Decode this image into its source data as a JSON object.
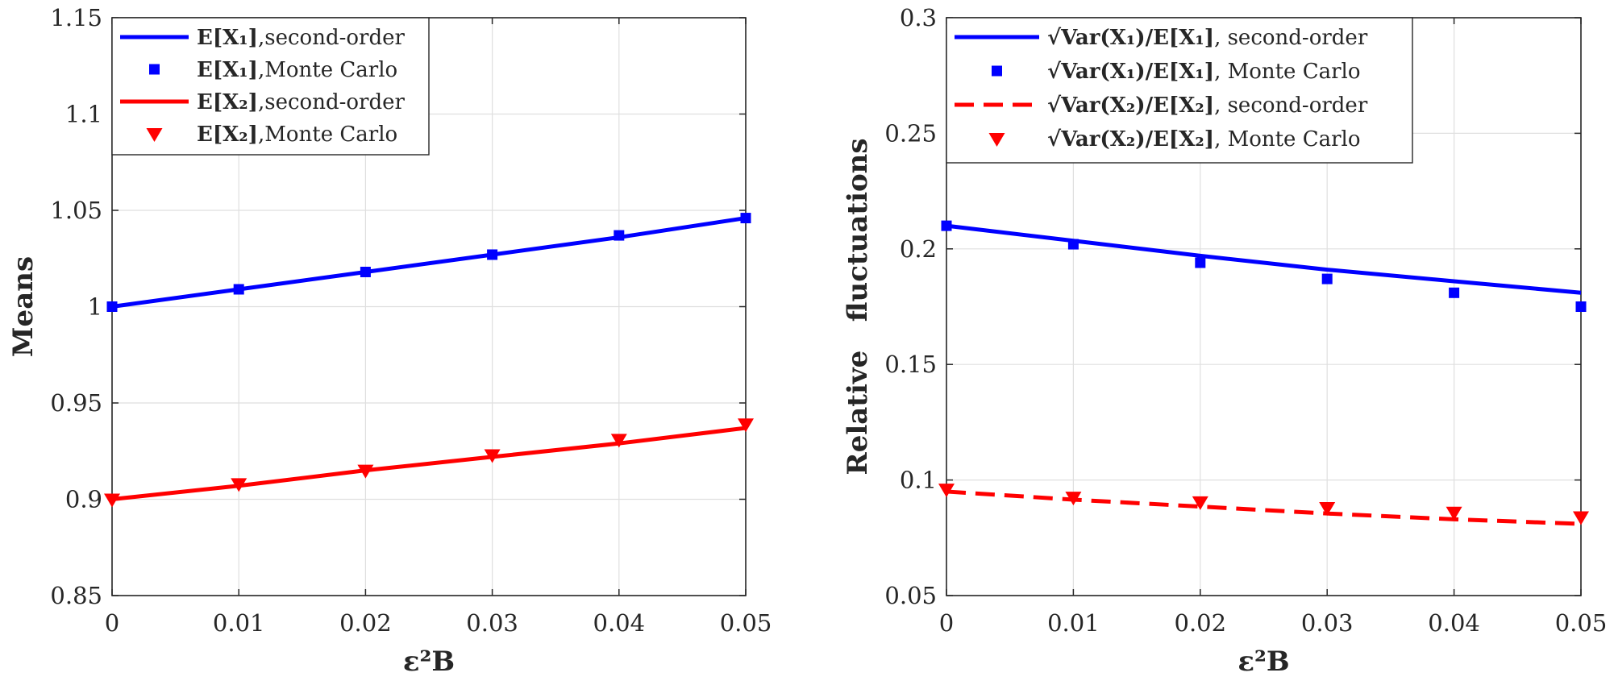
{
  "chart_data": [
    {
      "type": "line",
      "title": "",
      "xlabel": "ε²B",
      "ylabel": "Means",
      "xlim": [
        0,
        0.05
      ],
      "ylim": [
        0.85,
        1.15
      ],
      "x_ticks": [
        "0",
        "0.01",
        "0.02",
        "0.03",
        "0.04",
        "0.05"
      ],
      "y_ticks": [
        "0.85",
        "0.9",
        "0.95",
        "1",
        "1.05",
        "1.1",
        "1.15"
      ],
      "grid": true,
      "legend_position": "top-left",
      "x": [
        0,
        0.01,
        0.02,
        0.03,
        0.04,
        0.05
      ],
      "series": [
        {
          "name": "E[X₁],second-order",
          "style": "solid-line",
          "color": "#0000ff",
          "values": [
            1.0,
            1.009,
            1.018,
            1.027,
            1.036,
            1.046
          ]
        },
        {
          "name": "E[X₁],Monte Carlo",
          "style": "square-marker",
          "color": "#0000ff",
          "values": [
            1.0,
            1.009,
            1.018,
            1.027,
            1.037,
            1.046
          ]
        },
        {
          "name": "E[X₂],second-order",
          "style": "solid-line",
          "color": "#ff0000",
          "values": [
            0.9,
            0.907,
            0.915,
            0.922,
            0.929,
            0.937
          ]
        },
        {
          "name": "E[X₂],Monte Carlo",
          "style": "triangle-marker",
          "color": "#ff0000",
          "values": [
            0.9,
            0.908,
            0.915,
            0.923,
            0.931,
            0.939
          ]
        }
      ]
    },
    {
      "type": "line",
      "title": "",
      "xlabel": "ε²B",
      "ylabel": "Relative   fluctuations",
      "xlim": [
        0,
        0.05
      ],
      "ylim": [
        0.05,
        0.3
      ],
      "x_ticks": [
        "0",
        "0.01",
        "0.02",
        "0.03",
        "0.04",
        "0.05"
      ],
      "y_ticks": [
        "0.05",
        "0.1",
        "0.15",
        "0.2",
        "0.25",
        "0.3"
      ],
      "grid": true,
      "legend_position": "top-left",
      "x": [
        0,
        0.01,
        0.02,
        0.03,
        0.04,
        0.05
      ],
      "series": [
        {
          "name": "√Var(X₁)/E[X₁], second-order",
          "style": "solid-line",
          "color": "#0000ff",
          "values": [
            0.21,
            0.2035,
            0.197,
            0.191,
            0.186,
            0.181
          ]
        },
        {
          "name": "√Var(X₁)/E[X₁], Monte Carlo",
          "style": "square-marker",
          "color": "#0000ff",
          "values": [
            0.21,
            0.202,
            0.194,
            0.187,
            0.181,
            0.175
          ]
        },
        {
          "name": "√Var(X₂)/E[X₂], second-order",
          "style": "dashed-line",
          "color": "#ff0000",
          "values": [
            0.095,
            0.0915,
            0.0885,
            0.0855,
            0.083,
            0.081
          ]
        },
        {
          "name": "√Var(X₂)/E[X₂], Monte Carlo",
          "style": "triangle-marker",
          "color": "#ff0000",
          "values": [
            0.096,
            0.0925,
            0.0905,
            0.088,
            0.086,
            0.084
          ]
        }
      ]
    }
  ],
  "legends": [
    [
      {
        "label": "E[X₁]",
        "suffix": ",second-order"
      },
      {
        "label": "E[X₁]",
        "suffix": ",Monte Carlo"
      },
      {
        "label": "E[X₂]",
        "suffix": ",second-order"
      },
      {
        "label": "E[X₂]",
        "suffix": ",Monte Carlo"
      }
    ],
    [
      {
        "label": "√Var(X₁)/E[X₁]",
        "suffix": ", second-order"
      },
      {
        "label": "√Var(X₁)/E[X₁]",
        "suffix": ", Monte Carlo"
      },
      {
        "label": "√Var(X₂)/E[X₂]",
        "suffix": ", second-order"
      },
      {
        "label": "√Var(X₂)/E[X₂]",
        "suffix": ", Monte Carlo"
      }
    ]
  ]
}
